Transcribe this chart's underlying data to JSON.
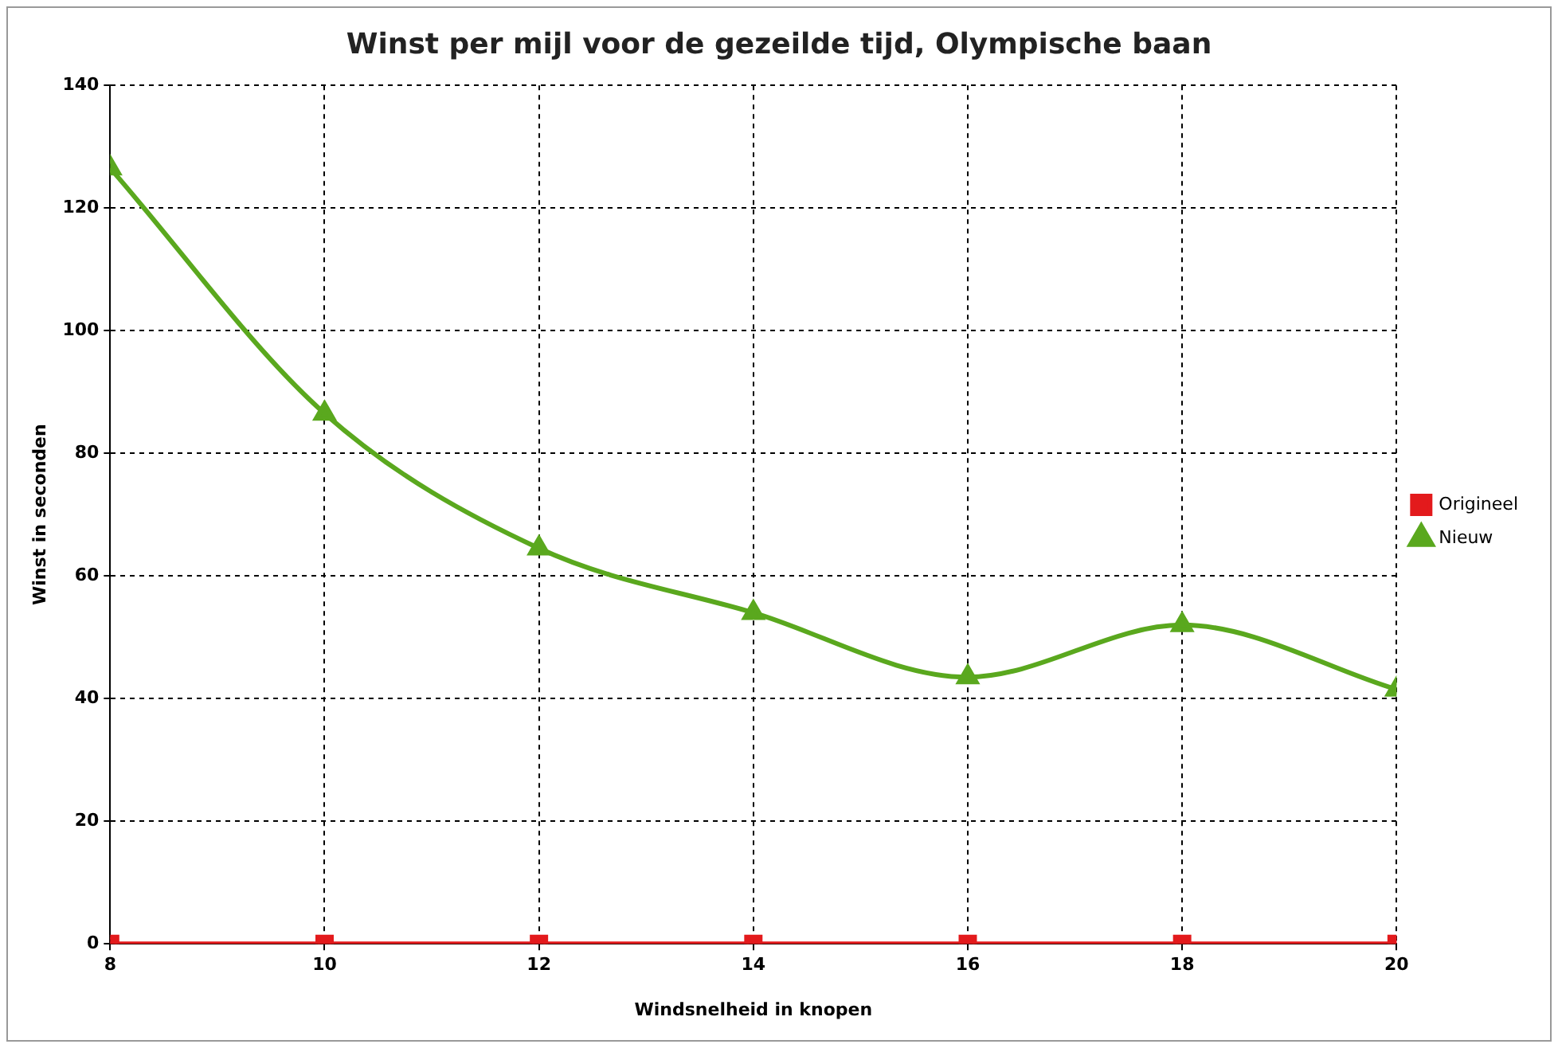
{
  "chart_data": {
    "type": "line",
    "title": "Winst per mijl voor de gezeilde tijd, Olympische baan",
    "xlabel": "Windsnelheid in knopen",
    "ylabel": "Winst in seconden",
    "x": [
      8,
      10,
      12,
      14,
      16,
      18,
      20
    ],
    "series": [
      {
        "name": "Origineel",
        "color": "#e31a1c",
        "marker": "square",
        "values": [
          0,
          0,
          0,
          0,
          0,
          0,
          0
        ]
      },
      {
        "name": "Nieuw",
        "color": "#5aa81e",
        "marker": "triangle",
        "values": [
          126.5,
          86.5,
          64.5,
          54,
          43.5,
          52,
          41.5
        ]
      }
    ],
    "xlim": [
      8,
      20
    ],
    "xticks": [
      8,
      10,
      12,
      14,
      16,
      18,
      20
    ],
    "ylim": [
      0,
      140
    ],
    "yticks": [
      0,
      20,
      40,
      60,
      80,
      100,
      120,
      140
    ],
    "grid": true,
    "legend": "right",
    "line_style": "solid"
  }
}
